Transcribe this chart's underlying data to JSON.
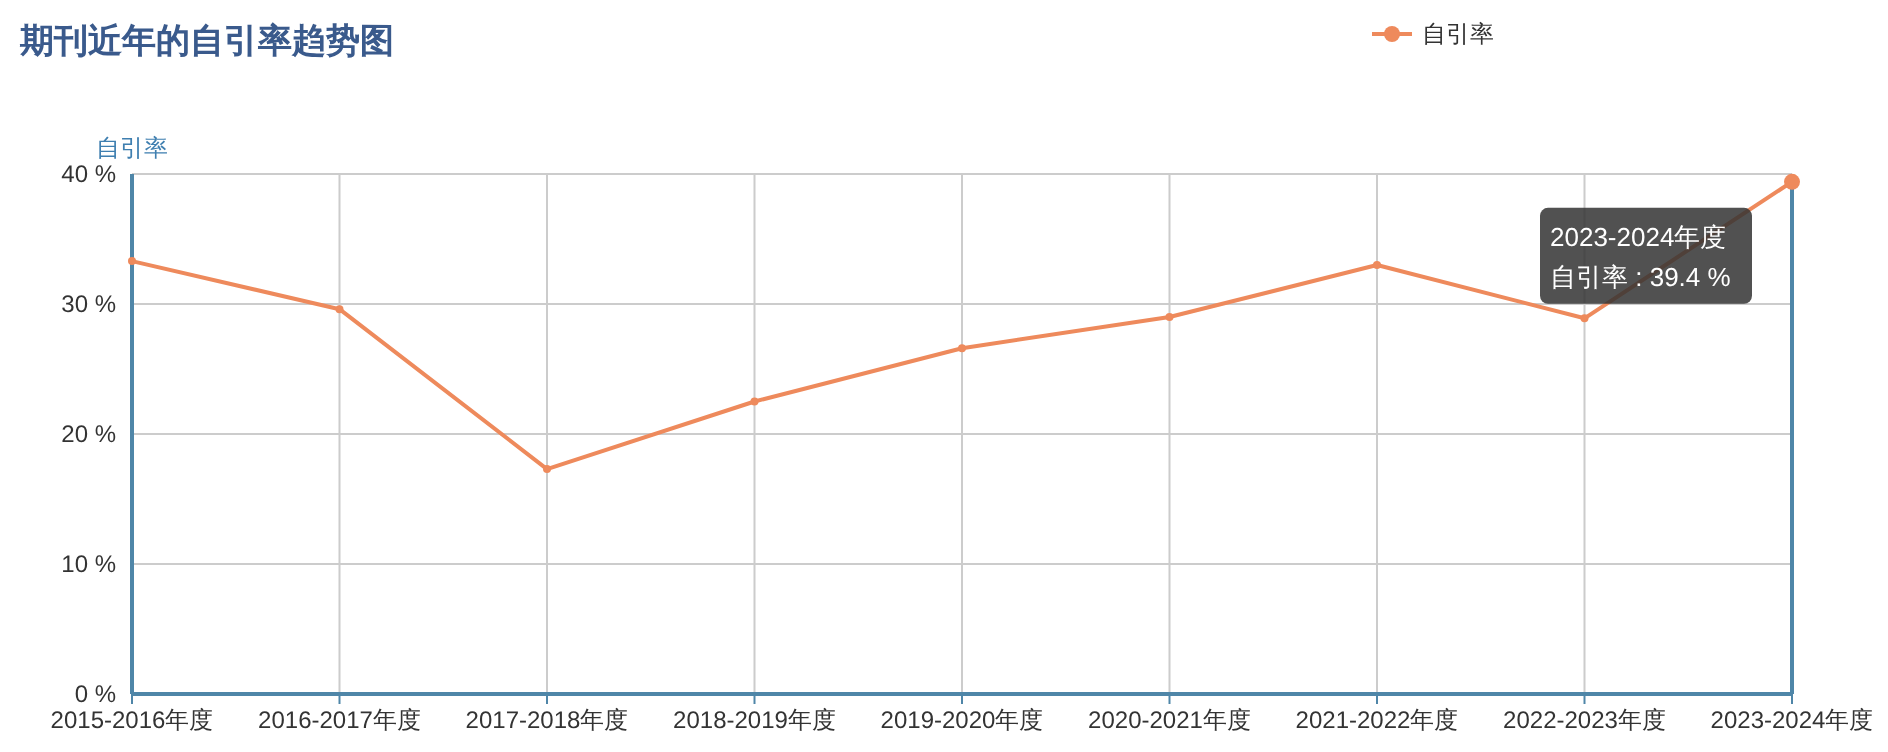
{
  "chart_data": {
    "type": "line",
    "title": "期刊近年的自引率趋势图",
    "ylabel": "自引率",
    "categories": [
      "2015-2016年度",
      "2016-2017年度",
      "2017-2018年度",
      "2018-2019年度",
      "2019-2020年度",
      "2020-2021年度",
      "2021-2022年度",
      "2022-2023年度",
      "2023-2024年度"
    ],
    "series": [
      {
        "name": "自引率",
        "color": "#ee8a5c",
        "values": [
          33.3,
          29.6,
          17.3,
          22.5,
          26.6,
          29.0,
          33.0,
          28.9,
          39.4
        ]
      }
    ],
    "ylim": [
      0,
      40
    ],
    "yticks": [
      {
        "value": 0,
        "label": "0 %"
      },
      {
        "value": 10,
        "label": "10 %"
      },
      {
        "value": 20,
        "label": "20 %"
      },
      {
        "value": 30,
        "label": "30 %"
      },
      {
        "value": 40,
        "label": "40 %"
      }
    ],
    "grid": true,
    "legend": "top right",
    "marker": "circle",
    "line_style": "solid",
    "annotations": [
      {
        "text": "2023-2024年度",
        "x": "2023-2024年度",
        "y": 39.4
      },
      "自引率 : 39.4 %"
    ]
  }
}
